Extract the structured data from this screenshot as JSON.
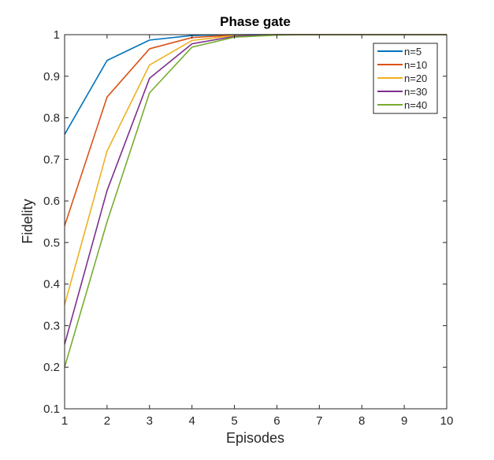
{
  "chart_data": {
    "type": "line",
    "title": "Phase gate",
    "xlabel": "Episodes",
    "ylabel": "Fidelity",
    "xlim": [
      1,
      10
    ],
    "ylim": [
      0.1,
      1
    ],
    "xticks": [
      1,
      2,
      3,
      4,
      5,
      6,
      7,
      8,
      9,
      10
    ],
    "yticks": [
      0.1,
      0.2,
      0.3,
      0.4,
      0.5,
      0.6,
      0.7,
      0.8,
      0.9,
      1
    ],
    "ytick_labels": [
      "0.1",
      "0.2",
      "0.3",
      "0.4",
      "0.5",
      "0.6",
      "0.7",
      "0.8",
      "0.9",
      "1"
    ],
    "grid": false,
    "legend_position": "top-right",
    "x": [
      1,
      2,
      3,
      4,
      5,
      6,
      7,
      8,
      9,
      10
    ],
    "series": [
      {
        "name": "n=5",
        "color": "#0072bd",
        "values": [
          0.76,
          0.938,
          0.987,
          0.998,
          1.0,
          1.0,
          1.0,
          1.0,
          1.0,
          1.0
        ]
      },
      {
        "name": "n=10",
        "color": "#d95319",
        "values": [
          0.54,
          0.85,
          0.966,
          0.993,
          0.999,
          1.0,
          1.0,
          1.0,
          1.0,
          1.0
        ]
      },
      {
        "name": "n=20",
        "color": "#edb120",
        "values": [
          0.35,
          0.72,
          0.927,
          0.986,
          0.998,
          1.0,
          1.0,
          1.0,
          1.0,
          1.0
        ]
      },
      {
        "name": "n=30",
        "color": "#7e2f8e",
        "values": [
          0.255,
          0.625,
          0.895,
          0.978,
          0.996,
          1.0,
          1.0,
          1.0,
          1.0,
          1.0
        ]
      },
      {
        "name": "n=40",
        "color": "#77ac30",
        "values": [
          0.2,
          0.55,
          0.86,
          0.97,
          0.994,
          0.999,
          1.0,
          1.0,
          1.0,
          1.0
        ]
      }
    ]
  }
}
